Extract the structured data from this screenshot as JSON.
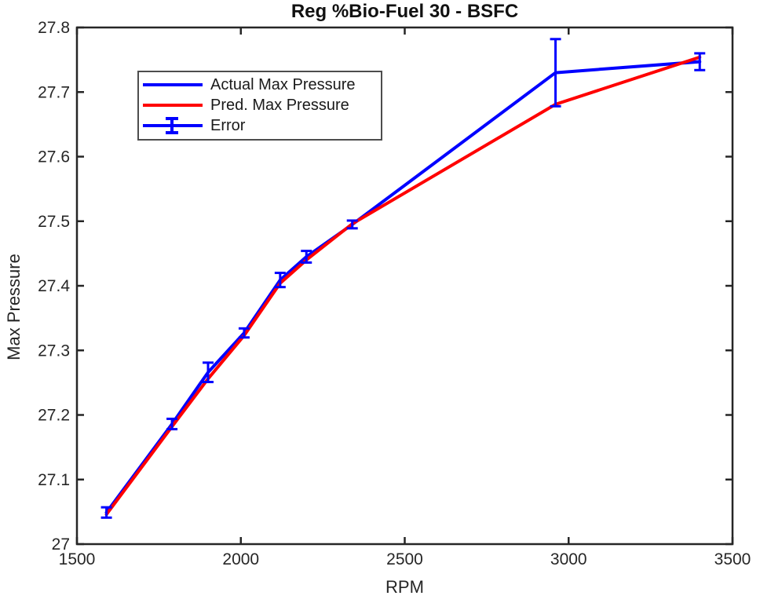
{
  "figure": {
    "background": "#ffffff",
    "axis_color": "#262626",
    "title_color": "#111111"
  },
  "chart_data": {
    "type": "line",
    "title": "Reg %Bio-Fuel 30 - BSFC",
    "xlabel": "RPM",
    "ylabel": "Max Pressure",
    "xlim": [
      1500,
      3500
    ],
    "ylim": [
      27,
      27.8
    ],
    "x_ticks": [
      1500,
      2000,
      2500,
      3000,
      3500
    ],
    "y_ticks": [
      27,
      27.1,
      27.2,
      27.3,
      27.4,
      27.5,
      27.6,
      27.7,
      27.8
    ],
    "grid": false,
    "box": true,
    "legend_position": "upper-left-inside",
    "x": [
      1590,
      1790,
      1900,
      2010,
      2120,
      2200,
      2340,
      2960,
      3400
    ],
    "series": [
      {
        "name": "Actual Max Pressure",
        "color": "#0000ff",
        "values": [
          27.049,
          27.186,
          27.266,
          27.327,
          27.409,
          27.445,
          27.495,
          27.73,
          27.747
        ]
      },
      {
        "name": "Pred. Max Pressure",
        "color": "#ff0000",
        "values": [
          27.046,
          27.182,
          27.256,
          27.323,
          27.404,
          27.44,
          27.496,
          27.681,
          27.754
        ]
      }
    ],
    "error_bars": {
      "name": "Error",
      "color": "#0000ff",
      "attached_to": "Actual Max Pressure",
      "half_widths": [
        0.008,
        0.008,
        0.015,
        0.007,
        0.011,
        0.009,
        0.006,
        0.052,
        0.013
      ]
    }
  },
  "legend": {
    "entries": [
      {
        "label": "Actual Max Pressure",
        "type": "line",
        "color": "#0000ff"
      },
      {
        "label": "Pred. Max Pressure",
        "type": "line",
        "color": "#ff0000"
      },
      {
        "label": "Error",
        "type": "errorbar",
        "color": "#0000ff"
      }
    ]
  }
}
